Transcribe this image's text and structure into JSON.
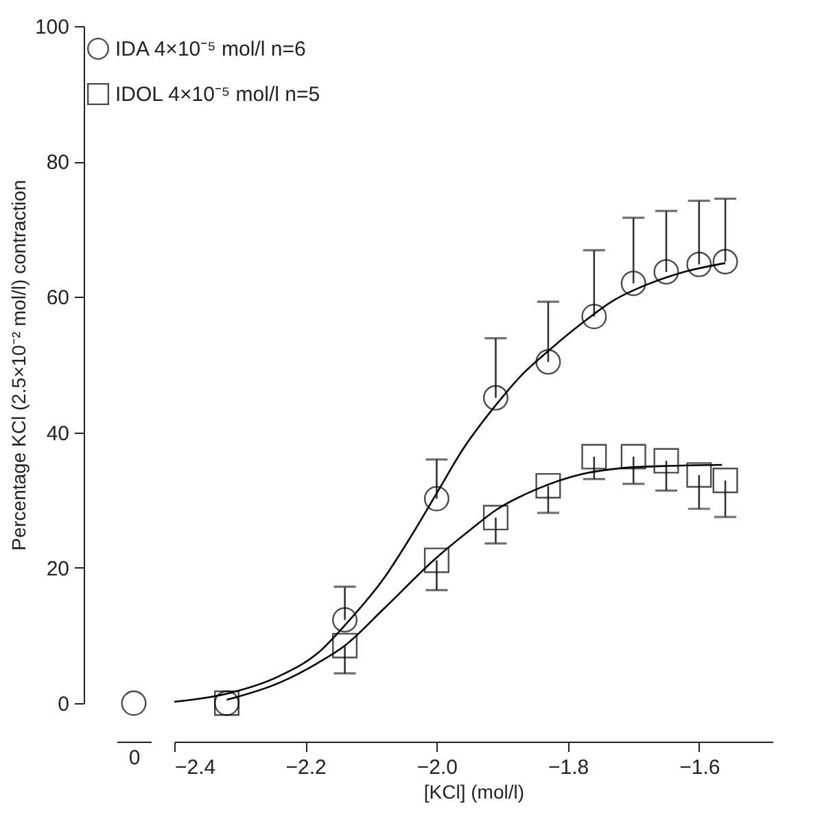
{
  "chart_data": [
    {
      "type": "scatter",
      "categories": [
        "0"
      ],
      "ylim": [
        0,
        100
      ],
      "yticks": [
        0,
        20,
        40,
        60,
        80,
        100
      ],
      "ylabel": "Percentage KCl (2.5×10⁻² mol/l) contraction",
      "grid": false,
      "legend": false,
      "series": [
        {
          "values": [
            0
          ],
          "color": "#000000",
          "marker": "circle"
        }
      ]
    },
    {
      "type": "scatter",
      "xlabel": "[KCl] (mol/l)",
      "xlim": [
        -2.4,
        -1.488
      ],
      "xticks": [
        {
          "value": -2.4,
          "label": "−2.4"
        },
        {
          "value": -2.2,
          "label": "−2.2"
        },
        {
          "value": -2.0,
          "label": "−2.0"
        },
        {
          "value": -1.8,
          "label": "−1.8"
        },
        {
          "value": -1.6,
          "label": "−1.6"
        }
      ],
      "ylim": [
        0,
        100
      ],
      "tick_labels": "x",
      "grid": false,
      "legend": "top left",
      "x": [
        -2.32,
        -2.14,
        -2.0,
        -1.91,
        -1.83,
        -1.76,
        -1.7,
        -1.65,
        -1.6,
        -1.56
      ],
      "series": [
        {
          "type": "line",
          "color": "#000000",
          "marker": "none",
          "line_style": "solid",
          "x": [
            -2.4,
            -2.32,
            -2.24,
            -2.18,
            -2.14,
            -2.08,
            -2.04,
            -2.0,
            -1.96,
            -1.91,
            -1.87,
            -1.83,
            -1.78,
            -1.73,
            -1.68,
            -1.63,
            -1.56
          ],
          "values": [
            0.2,
            1.4,
            4,
            7.5,
            11.5,
            18.5,
            24.5,
            31,
            37.5,
            44,
            48.5,
            52,
            56,
            59.5,
            61.8,
            63.5,
            65
          ]
        },
        {
          "type": "line",
          "color": "#000000",
          "marker": "none",
          "line_style": "solid",
          "x": [
            -2.32,
            -2.24,
            -2.18,
            -2.14,
            -2.08,
            -2.0,
            -1.95,
            -1.91,
            -1.85,
            -1.78,
            -1.72,
            -1.66,
            -1.565
          ],
          "values": [
            0.5,
            3,
            6,
            8.5,
            14,
            21.5,
            25.5,
            28.5,
            31.5,
            33.8,
            34.7,
            35,
            35.2
          ]
        },
        {
          "name": "IDA 4×10⁻⁵ mol/l n=6",
          "color": "#000000",
          "marker": "circle",
          "values": [
            0,
            12.3,
            30.2,
            45.1,
            50.4,
            57.1,
            62,
            63.7,
            64.8,
            65.2
          ],
          "errors": [
            null,
            [
              12.3,
              17.2
            ],
            [
              30.2,
              36
            ],
            [
              45.1,
              53.9
            ],
            [
              50.4,
              59.3
            ],
            [
              57.1,
              66.9
            ],
            [
              62,
              71.7
            ],
            [
              63.7,
              72.7
            ],
            [
              64.8,
              74.2
            ],
            [
              65.2,
              74.5
            ]
          ]
        },
        {
          "name": "IDOL 4×10⁻⁵ mol/l n=5",
          "color": "#000000",
          "marker": "square",
          "values": [
            0,
            8.5,
            21.1,
            27.4,
            32.1,
            36.4,
            36.4,
            35.8,
            33.7,
            32.9
          ],
          "errors": [
            null,
            [
              4.4,
              8.5
            ],
            [
              16.7,
              21.1
            ],
            [
              23.6,
              27.4
            ],
            [
              28.1,
              32.1
            ],
            [
              33.1,
              36.4
            ],
            [
              32.4,
              36.4
            ],
            [
              31.4,
              35.8
            ],
            [
              28.7,
              33.7
            ],
            [
              27.5,
              32.9
            ]
          ]
        }
      ]
    }
  ]
}
